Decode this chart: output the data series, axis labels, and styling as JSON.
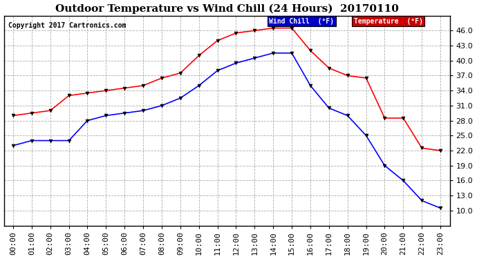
{
  "title": "Outdoor Temperature vs Wind Chill (24 Hours)  20170110",
  "copyright": "Copyright 2017 Cartronics.com",
  "hours": [
    "00:00",
    "01:00",
    "02:00",
    "03:00",
    "04:00",
    "05:00",
    "06:00",
    "07:00",
    "08:00",
    "09:00",
    "10:00",
    "11:00",
    "12:00",
    "13:00",
    "14:00",
    "15:00",
    "16:00",
    "17:00",
    "18:00",
    "19:00",
    "20:00",
    "21:00",
    "22:00",
    "23:00"
  ],
  "temperature": [
    29.0,
    29.5,
    30.0,
    33.0,
    33.5,
    34.0,
    34.5,
    35.0,
    36.5,
    37.5,
    41.0,
    44.0,
    45.5,
    46.0,
    46.5,
    46.5,
    42.0,
    38.5,
    37.0,
    36.5,
    28.5,
    28.5,
    22.5,
    22.0
  ],
  "wind_chill": [
    23.0,
    24.0,
    24.0,
    24.0,
    28.0,
    29.0,
    29.5,
    30.0,
    31.0,
    32.5,
    35.0,
    38.0,
    39.5,
    40.5,
    41.5,
    41.5,
    35.0,
    30.5,
    29.0,
    25.0,
    19.0,
    16.0,
    12.0,
    10.5
  ],
  "temp_color": "#ff0000",
  "wind_chill_color": "#0000ff",
  "bg_color": "#ffffff",
  "plot_bg_color": "#ffffff",
  "grid_color": "#aaaaaa",
  "title_fontsize": 11,
  "tick_fontsize": 8,
  "copyright_fontsize": 7,
  "legend_wind_chill_bg": "#0000cc",
  "legend_temp_bg": "#cc0000",
  "ylim_min": 7.0,
  "ylim_max": 49.0,
  "yticks": [
    10.0,
    13.0,
    16.0,
    19.0,
    22.0,
    25.0,
    28.0,
    31.0,
    34.0,
    37.0,
    40.0,
    43.0,
    46.0
  ],
  "legend_wind_label": "Wind Chill  (°F)",
  "legend_temp_label": "Temperature  (°F)"
}
